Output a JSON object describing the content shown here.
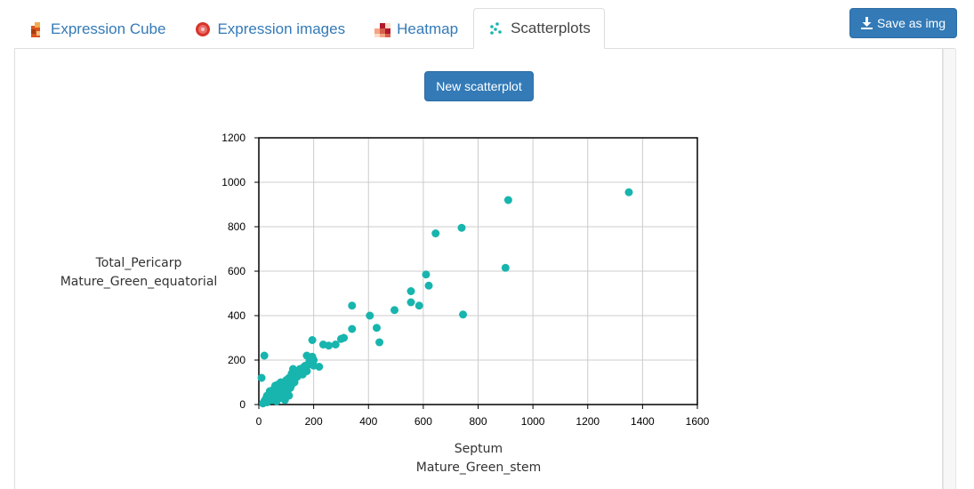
{
  "tabs": [
    {
      "label": "Expression Cube",
      "icon": "cube-icon",
      "active": false
    },
    {
      "label": "Expression images",
      "icon": "image-icon",
      "active": false
    },
    {
      "label": "Heatmap",
      "icon": "heatmap-icon",
      "active": false
    },
    {
      "label": "Scatterplots",
      "icon": "scatterplot-icon",
      "active": true
    }
  ],
  "toolbar": {
    "save_label": "Save as img",
    "save_icon": "download-icon"
  },
  "main": {
    "new_scatterplot_label": "New scatterplot"
  },
  "colors": {
    "accent": "#337ab7",
    "point": "#17b5ae"
  },
  "chart_data": {
    "type": "scatter",
    "xlabel": [
      "Septum",
      "Mature_Green_stem"
    ],
    "ylabel": [
      "Total_Pericarp",
      "Mature_Green_equatorial"
    ],
    "xlim": [
      0,
      1600
    ],
    "ylim": [
      0,
      1200
    ],
    "xticks": [
      0,
      200,
      400,
      600,
      800,
      1000,
      1200,
      1400,
      1600
    ],
    "yticks": [
      0,
      200,
      400,
      600,
      800,
      1000,
      1200
    ],
    "grid": true,
    "points": [
      [
        1350,
        955
      ],
      [
        910,
        920
      ],
      [
        900,
        615
      ],
      [
        740,
        795
      ],
      [
        745,
        405
      ],
      [
        645,
        770
      ],
      [
        610,
        585
      ],
      [
        620,
        535
      ],
      [
        555,
        510
      ],
      [
        555,
        460
      ],
      [
        585,
        445
      ],
      [
        495,
        425
      ],
      [
        405,
        400
      ],
      [
        430,
        345
      ],
      [
        440,
        280
      ],
      [
        340,
        445
      ],
      [
        340,
        340
      ],
      [
        310,
        300
      ],
      [
        300,
        295
      ],
      [
        280,
        270
      ],
      [
        255,
        265
      ],
      [
        235,
        270
      ],
      [
        195,
        290
      ],
      [
        175,
        220
      ],
      [
        195,
        215
      ],
      [
        200,
        200
      ],
      [
        185,
        180
      ],
      [
        200,
        175
      ],
      [
        220,
        170
      ],
      [
        165,
        170
      ],
      [
        150,
        160
      ],
      [
        125,
        160
      ],
      [
        150,
        140
      ],
      [
        140,
        125
      ],
      [
        120,
        140
      ],
      [
        110,
        120
      ],
      [
        125,
        110
      ],
      [
        130,
        100
      ],
      [
        100,
        95
      ],
      [
        90,
        80
      ],
      [
        80,
        100
      ],
      [
        70,
        90
      ],
      [
        60,
        85
      ],
      [
        55,
        70
      ],
      [
        70,
        60
      ],
      [
        90,
        55
      ],
      [
        105,
        60
      ],
      [
        110,
        40
      ],
      [
        75,
        45
      ],
      [
        60,
        40
      ],
      [
        50,
        50
      ],
      [
        45,
        30
      ],
      [
        40,
        60
      ],
      [
        40,
        20
      ],
      [
        30,
        40
      ],
      [
        25,
        25
      ],
      [
        20,
        15
      ],
      [
        30,
        10
      ],
      [
        15,
        5
      ],
      [
        10,
        120
      ],
      [
        20,
        220
      ],
      [
        55,
        20
      ],
      [
        65,
        15
      ],
      [
        80,
        30
      ],
      [
        95,
        20
      ],
      [
        100,
        110
      ],
      [
        120,
        90
      ],
      [
        140,
        150
      ],
      [
        160,
        135
      ],
      [
        170,
        175
      ],
      [
        185,
        195
      ],
      [
        175,
        150
      ],
      [
        115,
        75
      ],
      [
        85,
        65
      ],
      [
        35,
        35
      ]
    ]
  }
}
